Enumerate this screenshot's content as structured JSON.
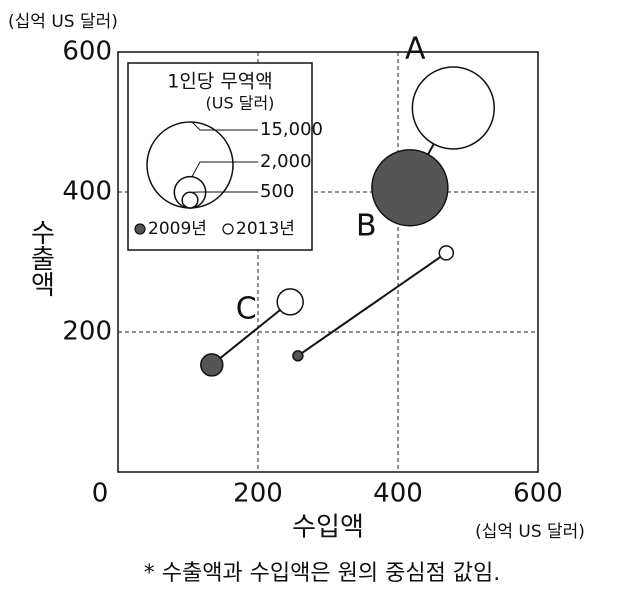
{
  "chart_data": {
    "type": "bubble",
    "y_unit": "(십억 US 달러)",
    "ylabel": "수출액",
    "xlabel": "수입액",
    "x_unit": "(십억 US 달러)",
    "footnote": "* 수출액과 수입액은 원의 중심점 값임.",
    "point_labels": [
      "A",
      "B",
      "C"
    ],
    "series": [
      {
        "name": "2009년",
        "color": "#555555",
        "x": [
          417,
          257,
          134
        ],
        "values": [
          406,
          166,
          153
        ],
        "sizes": [
          11700,
          200,
          980
        ]
      },
      {
        "name": "2013년",
        "color": "#ffffff",
        "x": [
          479,
          469,
          246
        ],
        "values": [
          520,
          313,
          243
        ],
        "sizes": [
          13600,
          400,
          1370
        ]
      }
    ],
    "size_legend": {
      "title": "1인당 무역액",
      "subtitle": "(US 달러)",
      "values": [
        15000,
        2000,
        500
      ],
      "value_labels": [
        "15,000",
        "2,000",
        "500"
      ]
    },
    "xlim": [
      0,
      600
    ],
    "ylim": [
      0,
      600
    ],
    "xticks": [
      0,
      200,
      400,
      600
    ],
    "yticks": [
      200,
      400,
      600
    ],
    "grid": true
  }
}
